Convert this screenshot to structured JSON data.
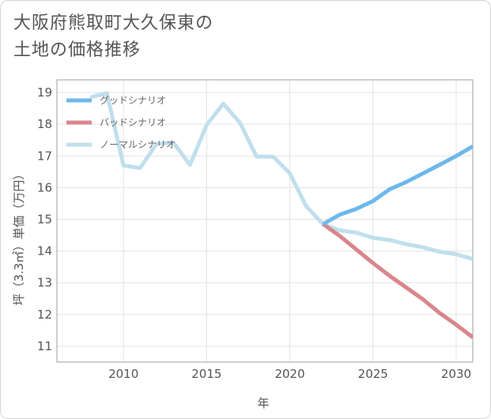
{
  "title": {
    "line1": "大阪府熊取町大久保東の",
    "line2": "土地の価格推移"
  },
  "chart_data": {
    "type": "line",
    "xlabel": "年",
    "ylabel": "坪（3.3㎡）単価（万円）",
    "xlim": [
      2006,
      2031
    ],
    "ylim": [
      10.5,
      19.4
    ],
    "xticks": [
      2010,
      2015,
      2020,
      2025,
      2030
    ],
    "yticks": [
      11,
      12,
      13,
      14,
      15,
      16,
      17,
      18,
      19
    ],
    "grid": true,
    "legend_position": "top-left",
    "series": [
      {
        "name": "グッドシナリオ",
        "color": "#6db8eb",
        "x": [
          2022,
          2023,
          2024,
          2025,
          2026,
          2027,
          2028,
          2029,
          2030,
          2031
        ],
        "y": [
          14.85,
          15.15,
          15.33,
          15.58,
          15.95,
          16.18,
          16.45,
          16.72,
          17.0,
          17.3
        ]
      },
      {
        "name": "バッドシナリオ",
        "color": "#d9868c",
        "x": [
          2022,
          2023,
          2024,
          2025,
          2026,
          2027,
          2028,
          2029,
          2030,
          2031
        ],
        "y": [
          14.85,
          14.48,
          14.05,
          13.62,
          13.22,
          12.85,
          12.48,
          12.05,
          11.68,
          11.28
        ]
      },
      {
        "name": "ノーマルシナリオ",
        "color": "#c0dfec",
        "x": [
          2008,
          2009,
          2010,
          2011,
          2012,
          2013,
          2014,
          2015,
          2016,
          2017,
          2018,
          2019,
          2020,
          2021,
          2022,
          2023,
          2024,
          2025,
          2026,
          2027,
          2028,
          2029,
          2030,
          2031
        ],
        "y": [
          18.85,
          18.98,
          16.7,
          16.62,
          17.38,
          17.42,
          16.72,
          17.98,
          18.65,
          18.05,
          16.98,
          16.98,
          16.45,
          15.4,
          14.85,
          14.65,
          14.58,
          14.42,
          14.35,
          14.22,
          14.12,
          13.98,
          13.9,
          13.75
        ]
      }
    ]
  }
}
